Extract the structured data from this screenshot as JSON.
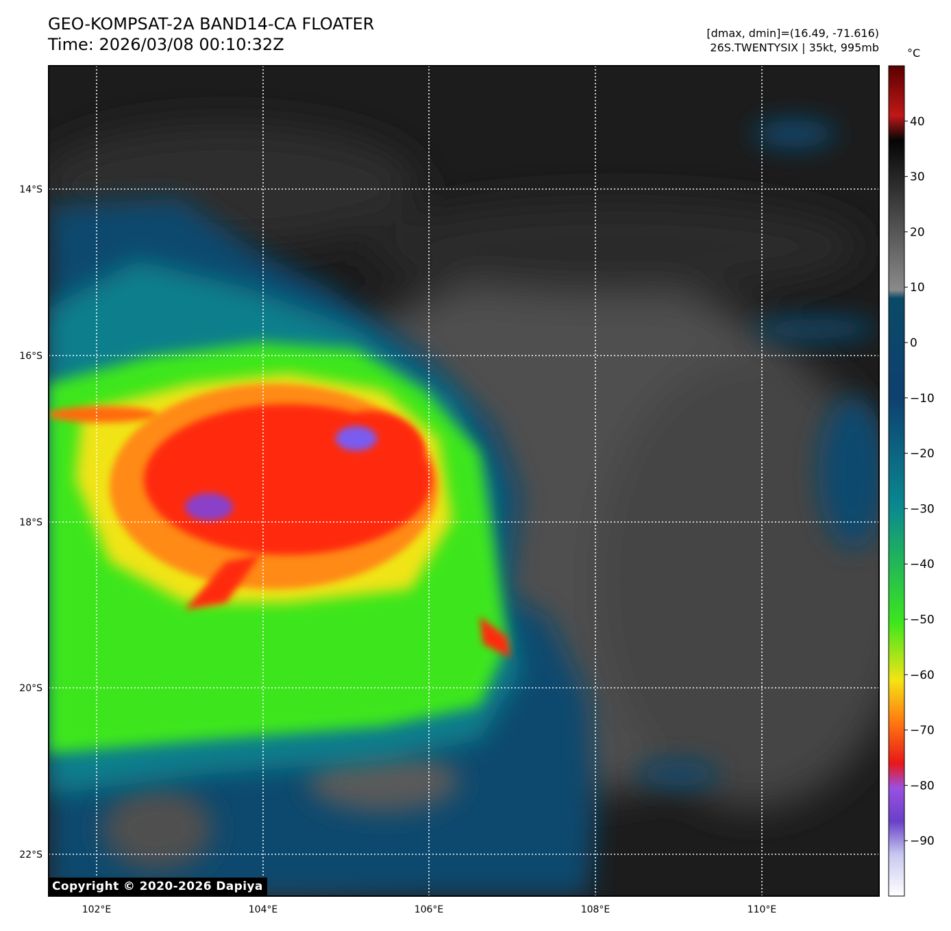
{
  "header": {
    "title_line1": "GEO-KOMPSAT-2A BAND14-CA FLOATER",
    "title_line2": "Time: 2026/03/08 00:10:32Z",
    "meta_line1": "[dmax, dmin]=(16.49, -71.616)",
    "meta_line2": "26S.TWENTYSIX | 35kt, 995mb"
  },
  "colorbar": {
    "unit": "°C",
    "ticks": [
      "40",
      "30",
      "20",
      "10",
      "0",
      "−10",
      "−20",
      "−30",
      "−40",
      "−50",
      "−60",
      "−70",
      "−80",
      "−90"
    ],
    "range": [
      -100,
      50
    ]
  },
  "copyright": "Copyright © 2020-2026 Dapiya",
  "chart_data": {
    "type": "heatmap",
    "title": "GEO-KOMPSAT-2A BAND14-CA FLOATER",
    "xlabel": "",
    "ylabel": "",
    "x_ticks": [
      "102°E",
      "104°E",
      "106°E",
      "108°E",
      "110°E"
    ],
    "y_ticks": [
      "14°S",
      "16°S",
      "18°S",
      "20°S",
      "22°S"
    ],
    "xlim": [
      101.42,
      111.42
    ],
    "ylim": [
      -22.5,
      -12.5
    ],
    "grid": true,
    "colorbar_range": [
      -100,
      50
    ],
    "colors": {
      "cold_top": "#ff2a10",
      "coldest": "#7a5cf0",
      "mid_cloud": "#f0e414",
      "green_band": "#3ce61e",
      "teal": "#0b7f8c",
      "navy": "#0f4a6e",
      "warm_gray": "#5a5a5a",
      "clear": "#1c1c1c"
    }
  }
}
